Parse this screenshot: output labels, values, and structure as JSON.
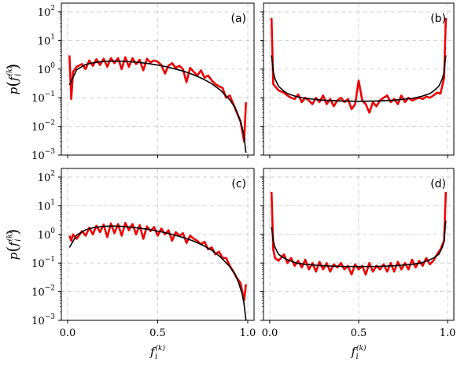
{
  "figure": {
    "xlabel": "f_i^(k)",
    "ylabel": "p(f_i^(k))",
    "colors": {
      "data": "#ee0000",
      "fit": "#000000",
      "grid": "#c8c8c8"
    }
  },
  "chart_data": [
    {
      "type": "line",
      "panel_label": "(a)",
      "xlabel": "",
      "ylabel": "p(f_i^(k))",
      "xlim": [
        -0.035,
        1.035
      ],
      "ylim": [
        0.001,
        200
      ],
      "yscale": "log",
      "x_ticks": [
        "0.0",
        "0.5",
        "1.0"
      ],
      "y_ticks": [
        "10^-3",
        "10^-2",
        "10^-1",
        "10^0",
        "10^1",
        "10^2"
      ],
      "grid": true,
      "series": [
        {
          "role": "data",
          "x": [
            0.01,
            0.02,
            0.03,
            0.05,
            0.08,
            0.1,
            0.12,
            0.14,
            0.16,
            0.18,
            0.2,
            0.22,
            0.24,
            0.26,
            0.28,
            0.3,
            0.32,
            0.34,
            0.36,
            0.38,
            0.4,
            0.42,
            0.44,
            0.46,
            0.48,
            0.5,
            0.52,
            0.54,
            0.56,
            0.58,
            0.6,
            0.62,
            0.64,
            0.66,
            0.68,
            0.7,
            0.72,
            0.74,
            0.76,
            0.78,
            0.8,
            0.82,
            0.84,
            0.86,
            0.88,
            0.9,
            0.92,
            0.94,
            0.96,
            0.98,
            0.99
          ],
          "y": [
            3.0,
            0.09,
            0.8,
            1.2,
            1.5,
            1.0,
            2.0,
            1.3,
            2.2,
            1.4,
            2.3,
            1.2,
            2.4,
            1.6,
            2.4,
            1.0,
            2.6,
            1.2,
            2.4,
            1.5,
            2.1,
            0.9,
            2.3,
            1.7,
            2.0,
            1.8,
            1.4,
            0.7,
            1.3,
            1.6,
            1.1,
            1.3,
            1.0,
            0.35,
            1.1,
            0.8,
            0.6,
            0.9,
            0.5,
            0.6,
            0.4,
            0.3,
            0.25,
            0.22,
            0.1,
            0.12,
            0.06,
            0.03,
            0.015,
            0.003,
            0.07
          ]
        },
        {
          "role": "fit",
          "x": [
            0.01,
            0.05,
            0.1,
            0.15,
            0.2,
            0.25,
            0.3,
            0.35,
            0.4,
            0.45,
            0.5,
            0.55,
            0.6,
            0.65,
            0.7,
            0.75,
            0.8,
            0.85,
            0.9,
            0.93,
            0.95,
            0.97,
            0.98,
            0.99
          ],
          "y": [
            0.28,
            0.95,
            1.45,
            1.7,
            1.85,
            1.9,
            1.88,
            1.8,
            1.7,
            1.55,
            1.38,
            1.2,
            1.0,
            0.82,
            0.63,
            0.46,
            0.31,
            0.18,
            0.085,
            0.045,
            0.022,
            0.009,
            0.004,
            0.0012
          ]
        }
      ]
    },
    {
      "type": "line",
      "panel_label": "(b)",
      "xlabel": "",
      "ylabel": "",
      "xlim": [
        -0.035,
        1.035
      ],
      "ylim": [
        0.001,
        200
      ],
      "yscale": "log",
      "x_ticks": [
        "0.0",
        "0.5",
        "1.0"
      ],
      "y_ticks": [],
      "grid": true,
      "series": [
        {
          "role": "data",
          "x": [
            0.01,
            0.02,
            0.03,
            0.05,
            0.08,
            0.1,
            0.12,
            0.14,
            0.16,
            0.18,
            0.2,
            0.22,
            0.24,
            0.26,
            0.28,
            0.3,
            0.32,
            0.34,
            0.36,
            0.38,
            0.4,
            0.42,
            0.44,
            0.46,
            0.48,
            0.5,
            0.52,
            0.54,
            0.56,
            0.58,
            0.6,
            0.62,
            0.64,
            0.66,
            0.68,
            0.7,
            0.72,
            0.74,
            0.76,
            0.78,
            0.8,
            0.82,
            0.84,
            0.86,
            0.88,
            0.9,
            0.92,
            0.94,
            0.96,
            0.98,
            0.99
          ],
          "y": [
            60,
            0.3,
            0.25,
            0.18,
            0.15,
            0.12,
            0.1,
            0.09,
            0.13,
            0.07,
            0.1,
            0.08,
            0.06,
            0.1,
            0.07,
            0.12,
            0.06,
            0.09,
            0.05,
            0.08,
            0.1,
            0.07,
            0.09,
            0.04,
            0.06,
            0.4,
            0.08,
            0.06,
            0.03,
            0.07,
            0.05,
            0.08,
            0.1,
            0.12,
            0.07,
            0.09,
            0.06,
            0.12,
            0.07,
            0.1,
            0.08,
            0.09,
            0.1,
            0.09,
            0.11,
            0.1,
            0.12,
            0.15,
            0.14,
            0.5,
            60
          ]
        },
        {
          "role": "fit",
          "x": [
            0.01,
            0.02,
            0.03,
            0.05,
            0.08,
            0.1,
            0.15,
            0.2,
            0.3,
            0.4,
            0.5,
            0.6,
            0.7,
            0.8,
            0.85,
            0.9,
            0.92,
            0.95,
            0.97,
            0.98,
            0.99
          ],
          "y": [
            3.0,
            0.8,
            0.45,
            0.25,
            0.17,
            0.14,
            0.11,
            0.095,
            0.082,
            0.077,
            0.075,
            0.077,
            0.082,
            0.095,
            0.11,
            0.14,
            0.17,
            0.25,
            0.45,
            0.8,
            3.0
          ]
        }
      ]
    },
    {
      "type": "line",
      "panel_label": "(c)",
      "xlabel": "f_i^(k)",
      "ylabel": "p(f_i^(k))",
      "xlim": [
        -0.035,
        1.035
      ],
      "ylim": [
        0.001,
        200
      ],
      "yscale": "log",
      "x_ticks": [
        "0.0",
        "0.5",
        "1.0"
      ],
      "y_ticks": [
        "10^-3",
        "10^-2",
        "10^-1",
        "10^0",
        "10^1",
        "10^2"
      ],
      "grid": true,
      "series": [
        {
          "role": "data",
          "x": [
            0.01,
            0.02,
            0.03,
            0.05,
            0.08,
            0.1,
            0.12,
            0.14,
            0.16,
            0.18,
            0.2,
            0.22,
            0.24,
            0.26,
            0.28,
            0.3,
            0.32,
            0.34,
            0.36,
            0.38,
            0.4,
            0.42,
            0.44,
            0.46,
            0.48,
            0.5,
            0.52,
            0.54,
            0.56,
            0.58,
            0.6,
            0.62,
            0.64,
            0.66,
            0.68,
            0.7,
            0.72,
            0.74,
            0.76,
            0.78,
            0.8,
            0.82,
            0.84,
            0.86,
            0.88,
            0.9,
            0.92,
            0.94,
            0.96,
            0.98,
            0.99
          ],
          "y": [
            0.9,
            0.6,
            1.0,
            0.7,
            1.3,
            0.9,
            1.7,
            1.0,
            2.0,
            1.2,
            2.2,
            0.8,
            2.4,
            1.1,
            2.3,
            0.9,
            2.5,
            1.4,
            2.3,
            1.0,
            2.1,
            0.7,
            1.9,
            1.3,
            1.8,
            0.9,
            1.6,
            1.0,
            1.4,
            0.6,
            1.2,
            0.9,
            1.1,
            0.5,
            0.9,
            0.7,
            0.6,
            0.45,
            0.55,
            0.3,
            0.35,
            0.2,
            0.25,
            0.15,
            0.15,
            0.08,
            0.05,
            0.03,
            0.02,
            0.005,
            0.018
          ]
        },
        {
          "role": "fit",
          "x": [
            0.01,
            0.05,
            0.1,
            0.15,
            0.2,
            0.25,
            0.3,
            0.35,
            0.4,
            0.45,
            0.5,
            0.55,
            0.6,
            0.65,
            0.7,
            0.75,
            0.8,
            0.85,
            0.9,
            0.93,
            0.95,
            0.97,
            0.98,
            0.99
          ],
          "y": [
            0.35,
            0.95,
            1.45,
            1.75,
            1.9,
            1.95,
            1.9,
            1.8,
            1.65,
            1.5,
            1.3,
            1.12,
            0.92,
            0.75,
            0.58,
            0.42,
            0.28,
            0.16,
            0.075,
            0.04,
            0.02,
            0.008,
            0.0035,
            0.001
          ]
        }
      ]
    },
    {
      "type": "line",
      "panel_label": "(d)",
      "xlabel": "f_i^(k)",
      "ylabel": "",
      "xlim": [
        -0.035,
        1.035
      ],
      "ylim": [
        0.001,
        200
      ],
      "yscale": "log",
      "x_ticks": [
        "0.0",
        "0.5",
        "1.0"
      ],
      "y_ticks": [],
      "grid": true,
      "series": [
        {
          "role": "data",
          "x": [
            0.01,
            0.02,
            0.03,
            0.05,
            0.08,
            0.1,
            0.12,
            0.14,
            0.16,
            0.18,
            0.2,
            0.22,
            0.24,
            0.26,
            0.28,
            0.3,
            0.32,
            0.34,
            0.36,
            0.38,
            0.4,
            0.42,
            0.44,
            0.46,
            0.48,
            0.5,
            0.52,
            0.54,
            0.56,
            0.58,
            0.6,
            0.62,
            0.64,
            0.66,
            0.68,
            0.7,
            0.72,
            0.74,
            0.76,
            0.78,
            0.8,
            0.82,
            0.84,
            0.86,
            0.88,
            0.9,
            0.92,
            0.94,
            0.96,
            0.98,
            0.99
          ],
          "y": [
            30,
            0.3,
            0.15,
            0.12,
            0.2,
            0.1,
            0.15,
            0.08,
            0.12,
            0.07,
            0.13,
            0.06,
            0.1,
            0.05,
            0.11,
            0.06,
            0.1,
            0.05,
            0.09,
            0.07,
            0.1,
            0.06,
            0.08,
            0.04,
            0.09,
            0.06,
            0.08,
            0.04,
            0.1,
            0.05,
            0.08,
            0.06,
            0.09,
            0.05,
            0.1,
            0.05,
            0.11,
            0.06,
            0.1,
            0.06,
            0.13,
            0.07,
            0.12,
            0.08,
            0.15,
            0.09,
            0.12,
            0.2,
            0.3,
            0.6,
            30
          ]
        },
        {
          "role": "fit",
          "x": [
            0.01,
            0.02,
            0.03,
            0.05,
            0.08,
            0.1,
            0.15,
            0.2,
            0.3,
            0.4,
            0.5,
            0.6,
            0.7,
            0.8,
            0.85,
            0.9,
            0.92,
            0.95,
            0.97,
            0.98,
            0.99
          ],
          "y": [
            1.8,
            0.6,
            0.35,
            0.2,
            0.15,
            0.13,
            0.1,
            0.09,
            0.08,
            0.076,
            0.075,
            0.076,
            0.08,
            0.09,
            0.1,
            0.13,
            0.15,
            0.2,
            0.35,
            0.6,
            3.0
          ]
        }
      ]
    }
  ]
}
